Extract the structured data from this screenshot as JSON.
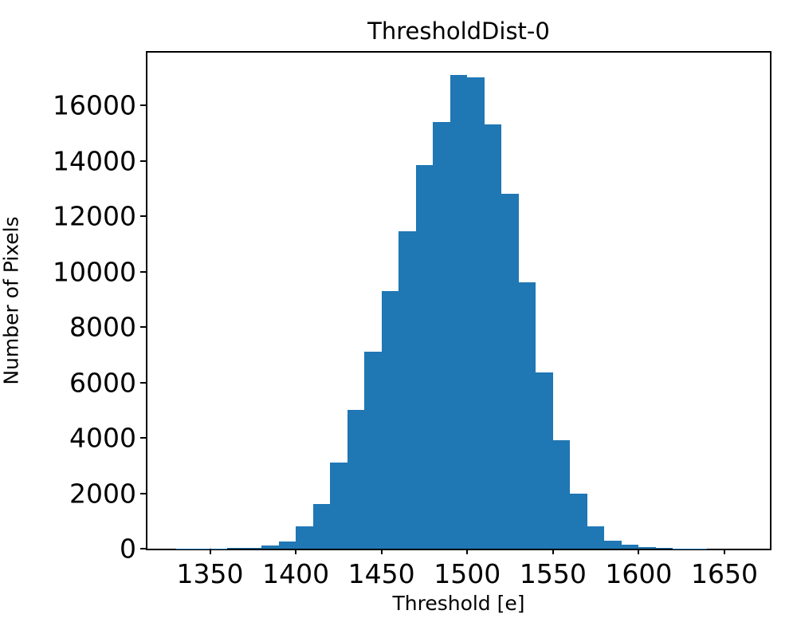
{
  "figure": {
    "background": "#ffffff"
  },
  "chart_data": {
    "type": "bar",
    "subtype": "histogram",
    "title": "ThresholdDist-0",
    "xlabel": "Threshold [e]",
    "ylabel": "Number of Pixels",
    "bar_color": "#1f77b4",
    "grid": false,
    "legend": false,
    "xlim": [
      1313.5,
      1676.5
    ],
    "ylim": [
      0,
      17900
    ],
    "x_ticks": [
      1350,
      1400,
      1450,
      1500,
      1550,
      1600,
      1650
    ],
    "y_ticks": [
      0,
      2000,
      4000,
      6000,
      8000,
      10000,
      12000,
      14000,
      16000
    ],
    "bin_width": 10,
    "bin_starts": [
      1330,
      1340,
      1350,
      1360,
      1370,
      1380,
      1390,
      1400,
      1410,
      1420,
      1430,
      1440,
      1450,
      1460,
      1470,
      1480,
      1490,
      1500,
      1510,
      1520,
      1530,
      1540,
      1550,
      1560,
      1570,
      1580,
      1590,
      1600,
      1610,
      1620,
      1630,
      1640,
      1650
    ],
    "counts": [
      3,
      5,
      8,
      15,
      40,
      110,
      260,
      800,
      1600,
      3100,
      5000,
      7100,
      9300,
      11450,
      13850,
      15400,
      17100,
      17000,
      15300,
      12800,
      9600,
      6350,
      3900,
      2000,
      800,
      300,
      130,
      60,
      25,
      10,
      4,
      2,
      1
    ]
  }
}
